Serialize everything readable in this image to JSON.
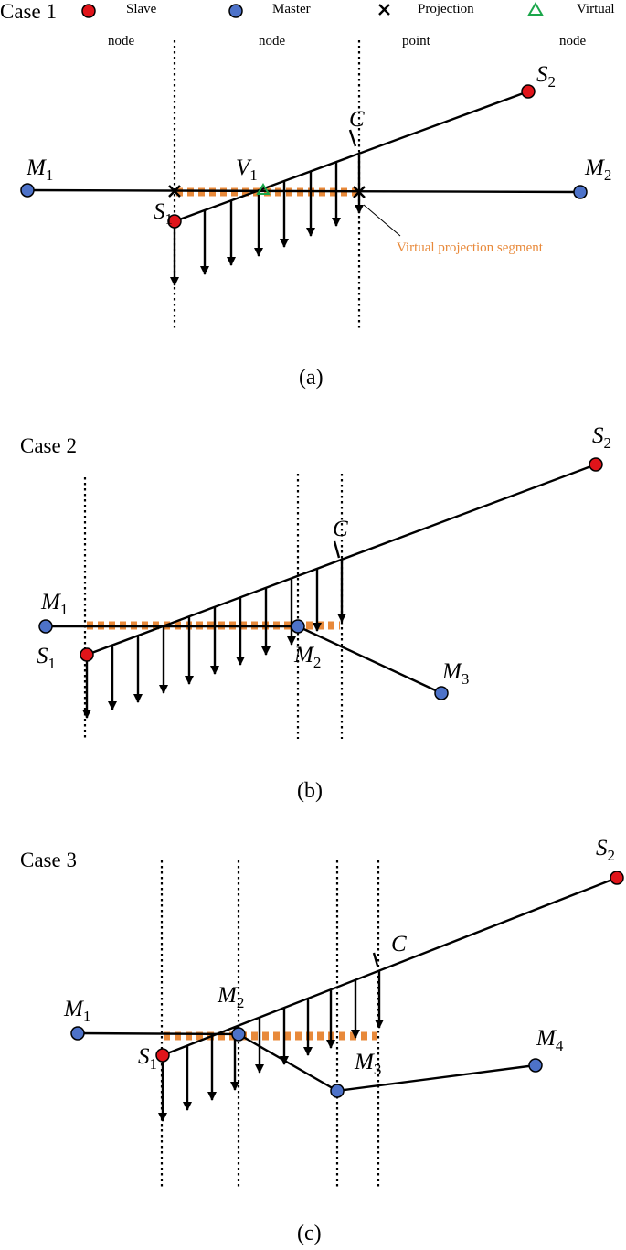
{
  "legend": {
    "case1": "Case 1",
    "slave_line1": "Slave",
    "slave_line2": "node",
    "master_line1": "Master",
    "master_line2": "node",
    "projection_line1": "Projection",
    "projection_line2": "point",
    "virtual_line1": "Virtual",
    "virtual_line2": "node",
    "colors": {
      "slave": "#e0141a",
      "master": "#4d72c9",
      "virtual": "#1aa64a",
      "segment": "#e8893a"
    }
  },
  "panel_a": {
    "caption": "(a)",
    "labels": {
      "M1": "M",
      "M1s": "1",
      "M2": "M",
      "M2s": "2",
      "S1": "S",
      "S1s": "1",
      "S2": "S",
      "S2s": "2",
      "V1": "V",
      "V1s": "1",
      "C": "C"
    },
    "annotation": "Virtual projection segment"
  },
  "panel_b": {
    "caption": "(b)",
    "title": "Case 2",
    "labels": {
      "M1": "M",
      "M1s": "1",
      "M2": "M",
      "M2s": "2",
      "M3": "M",
      "M3s": "3",
      "S1": "S",
      "S1s": "1",
      "S2": "S",
      "S2s": "2",
      "C": "C"
    }
  },
  "panel_c": {
    "caption": "(c)",
    "title": "Case 3",
    "labels": {
      "M1": "M",
      "M1s": "1",
      "M2": "M",
      "M2s": "2",
      "M3": "M",
      "M3s": "3",
      "M4": "M",
      "M4s": "4",
      "S1": "S",
      "S1s": "1",
      "S2": "S",
      "S2s": "2",
      "C": "C"
    }
  }
}
